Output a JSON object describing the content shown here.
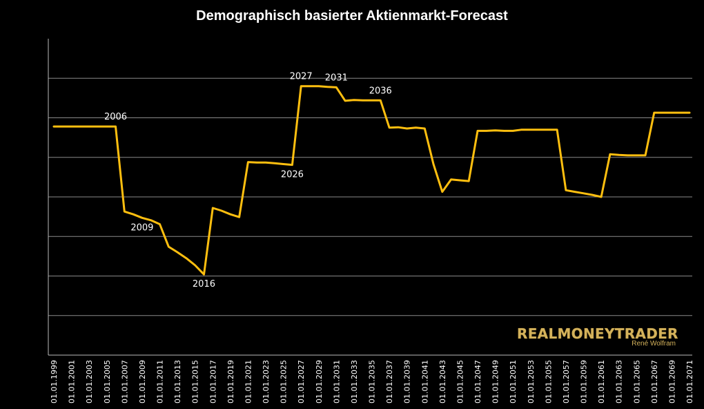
{
  "chart_data": {
    "type": "line",
    "title": "Demographisch basierter Aktienmarkt-Forecast",
    "xlabel": "",
    "ylabel": "",
    "yticks_labeled": false,
    "grid": true,
    "line_color": "#FFBF0F",
    "series": [
      {
        "x": [
          1999,
          2000,
          2001,
          2002,
          2003,
          2004,
          2005,
          2006,
          2007,
          2008,
          2009,
          2010,
          2011,
          2012,
          2013,
          2014,
          2015,
          2016,
          2017,
          2018,
          2019,
          2020,
          2021,
          2022,
          2023,
          2024,
          2025,
          2026,
          2027,
          2028,
          2029,
          2030,
          2031,
          2032,
          2033,
          2034,
          2035,
          2036,
          2037,
          2038,
          2039,
          2040,
          2041,
          2042,
          2043,
          2044,
          2045,
          2046,
          2047,
          2048,
          2049,
          2050,
          2051,
          2052,
          2053,
          2054,
          2055,
          2056,
          2057,
          2058,
          2059,
          2060,
          2061,
          2062,
          2063,
          2064,
          2065,
          2066,
          2067,
          2068,
          2069,
          2070,
          2071
        ],
        "values": [
          5.78,
          5.78,
          5.78,
          5.78,
          5.78,
          5.78,
          5.78,
          5.78,
          3.63,
          3.56,
          3.47,
          3.41,
          3.31,
          2.74,
          2.6,
          2.45,
          2.27,
          2.04,
          3.72,
          3.65,
          3.56,
          3.49,
          4.88,
          4.87,
          4.87,
          4.85,
          4.83,
          4.81,
          6.8,
          6.8,
          6.8,
          6.78,
          6.77,
          6.43,
          6.45,
          6.44,
          6.44,
          6.44,
          5.75,
          5.76,
          5.73,
          5.75,
          5.73,
          4.83,
          4.13,
          4.44,
          4.42,
          4.4,
          5.67,
          5.67,
          5.68,
          5.67,
          5.67,
          5.7,
          5.7,
          5.7,
          5.7,
          5.7,
          4.17,
          4.13,
          4.09,
          4.05,
          4.0,
          5.08,
          5.06,
          5.05,
          5.05,
          5.05,
          6.13,
          6.13,
          6.13,
          6.13,
          6.13
        ]
      }
    ],
    "xtick_labels": [
      "01.01.1999",
      "01.01.2001",
      "01.01.2003",
      "01.01.2005",
      "01.01.2007",
      "01.01.2009",
      "01.01.2011",
      "01.01.2013",
      "01.01.2015",
      "01.01.2017",
      "01.01.2019",
      "01.01.2021",
      "01.01.2023",
      "01.01.2025",
      "01.01.2027",
      "01.01.2029",
      "01.01.2031",
      "01.01.2033",
      "01.01.2035",
      "01.01.2037",
      "01.01.2039",
      "01.01.2041",
      "01.01.2043",
      "01.01.2045",
      "01.01.2047",
      "01.01.2049",
      "01.01.2051",
      "01.01.2053",
      "01.01.2055",
      "01.01.2057",
      "01.01.2059",
      "01.01.2061",
      "01.01.2063",
      "01.01.2065",
      "01.01.2067",
      "01.01.2069",
      "01.01.2071"
    ],
    "annotations": [
      {
        "text": "2006",
        "year": 2006,
        "position": "above"
      },
      {
        "text": "2009",
        "year": 2009,
        "position": "below"
      },
      {
        "text": "2016",
        "year": 2016,
        "position": "below"
      },
      {
        "text": "2026",
        "year": 2026,
        "position": "below"
      },
      {
        "text": "2027",
        "year": 2027,
        "position": "above"
      },
      {
        "text": "2031",
        "year": 2031,
        "position": "above"
      },
      {
        "text": "2036",
        "year": 2036,
        "position": "above"
      }
    ]
  },
  "branding": {
    "logo_text": "REALMONEYTRADER",
    "subtitle": "René Wolfram"
  }
}
